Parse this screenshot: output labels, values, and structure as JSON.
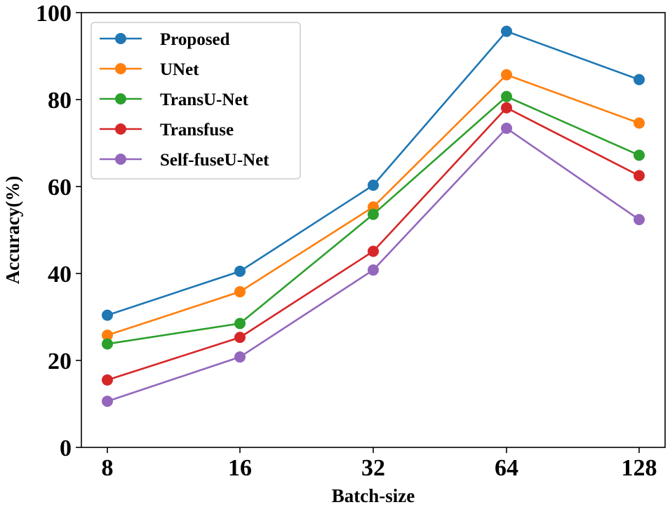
{
  "chart_data": {
    "type": "line",
    "categories": [
      "8",
      "16",
      "32",
      "64",
      "128"
    ],
    "xlabel": "Batch-size",
    "ylabel": "Accuracy(%)",
    "ylim": [
      0,
      100
    ],
    "yticks": [
      0,
      20,
      40,
      60,
      80,
      100
    ],
    "grid": false,
    "legend_position": "top-left",
    "series": [
      {
        "name": "Proposed",
        "color": "#1f77b4",
        "values": [
          30.4,
          40.5,
          60.3,
          95.7,
          84.6
        ]
      },
      {
        "name": "UNet",
        "color": "#ff7f0e",
        "values": [
          25.8,
          35.8,
          55.3,
          85.7,
          74.6
        ]
      },
      {
        "name": "TransU-Net",
        "color": "#2ca02c",
        "values": [
          23.8,
          28.5,
          53.6,
          80.7,
          67.2
        ]
      },
      {
        "name": "Transfuse",
        "color": "#d62728",
        "values": [
          15.5,
          25.3,
          45.1,
          78.1,
          62.5
        ]
      },
      {
        "name": "Self-fuseU-Net",
        "color": "#9467bd",
        "values": [
          10.6,
          20.8,
          40.8,
          73.4,
          52.4
        ]
      }
    ]
  }
}
